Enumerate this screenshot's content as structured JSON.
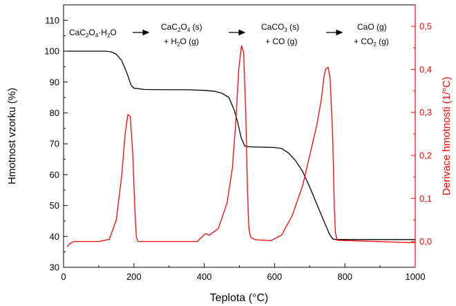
{
  "chart_data": {
    "type": "line",
    "xlabel": "Teplota (°C)",
    "ylabel_left": "Hmotnost vzorku (%)",
    "ylabel_right": "Derivace hmotnosti (1/°C)",
    "xlim": [
      0,
      1000
    ],
    "ylim_left": [
      30,
      115
    ],
    "ylim_right": [
      -0.06,
      0.55
    ],
    "x_ticks": [
      "0",
      "200",
      "400",
      "600",
      "800",
      "1000"
    ],
    "y_ticks_left": [
      "30",
      "40",
      "50",
      "60",
      "70",
      "80",
      "90",
      "100",
      "110"
    ],
    "y_ticks_right": [
      "0,0",
      "0,1",
      "0,2",
      "0,3",
      "0,4",
      "0,5"
    ],
    "grid": false,
    "colors": {
      "mass": "#000000",
      "derivative": "#ff0000",
      "right_axis": "#ff0000"
    },
    "series": [
      {
        "axis": "left",
        "points": [
          [
            10,
            100
          ],
          [
            120,
            100
          ],
          [
            135,
            99.8
          ],
          [
            150,
            99
          ],
          [
            165,
            97
          ],
          [
            180,
            93
          ],
          [
            192,
            89
          ],
          [
            200,
            88
          ],
          [
            230,
            87.6
          ],
          [
            300,
            87.5
          ],
          [
            350,
            87.5
          ],
          [
            400,
            87.3
          ],
          [
            430,
            87
          ],
          [
            450,
            86.4
          ],
          [
            470,
            85
          ],
          [
            485,
            81
          ],
          [
            495,
            77
          ],
          [
            505,
            72
          ],
          [
            515,
            69.3
          ],
          [
            530,
            69
          ],
          [
            600,
            68.8
          ],
          [
            620,
            68.5
          ],
          [
            640,
            67
          ],
          [
            660,
            64.5
          ],
          [
            680,
            61
          ],
          [
            700,
            56
          ],
          [
            720,
            50.5
          ],
          [
            740,
            45
          ],
          [
            755,
            41
          ],
          [
            765,
            39.2
          ],
          [
            775,
            39
          ],
          [
            1000,
            39
          ]
        ]
      },
      {
        "axis": "right",
        "points": [
          [
            10,
            -0.012
          ],
          [
            18,
            -0.005
          ],
          [
            30,
            0
          ],
          [
            100,
            0
          ],
          [
            130,
            0.005
          ],
          [
            150,
            0.05
          ],
          [
            165,
            0.15
          ],
          [
            175,
            0.25
          ],
          [
            183,
            0.295
          ],
          [
            190,
            0.29
          ],
          [
            197,
            0.2
          ],
          [
            203,
            0.07
          ],
          [
            207,
            0.01
          ],
          [
            212,
            0
          ],
          [
            380,
            0
          ],
          [
            393,
            0.01
          ],
          [
            402,
            0.018
          ],
          [
            415,
            0.015
          ],
          [
            440,
            0.03
          ],
          [
            465,
            0.09
          ],
          [
            480,
            0.17
          ],
          [
            490,
            0.28
          ],
          [
            498,
            0.4
          ],
          [
            506,
            0.455
          ],
          [
            512,
            0.44
          ],
          [
            518,
            0.3
          ],
          [
            523,
            0.12
          ],
          [
            527,
            0.03
          ],
          [
            532,
            0.01
          ],
          [
            545,
            0.004
          ],
          [
            590,
            0.002
          ],
          [
            620,
            0.015
          ],
          [
            650,
            0.06
          ],
          [
            680,
            0.13
          ],
          [
            700,
            0.2
          ],
          [
            720,
            0.27
          ],
          [
            733,
            0.33
          ],
          [
            740,
            0.38
          ],
          [
            745,
            0.4
          ],
          [
            752,
            0.405
          ],
          [
            758,
            0.38
          ],
          [
            765,
            0.25
          ],
          [
            770,
            0.08
          ],
          [
            773,
            0.02
          ],
          [
            778,
            0.003
          ],
          [
            1000,
            -0.003
          ]
        ]
      }
    ],
    "annotations": [
      {
        "x": 165,
        "y": 101,
        "label": "CaC2O4·H2O"
      },
      {
        "x": 355,
        "y": 106,
        "label": "CaC2O4 (s) + H2O (g)"
      },
      {
        "x": 560,
        "y": 106,
        "label": "CaCO3 (s) + CO (g)"
      },
      {
        "x": 760,
        "y": 106,
        "label": "CaO (g) + CO2 (g)"
      }
    ]
  }
}
